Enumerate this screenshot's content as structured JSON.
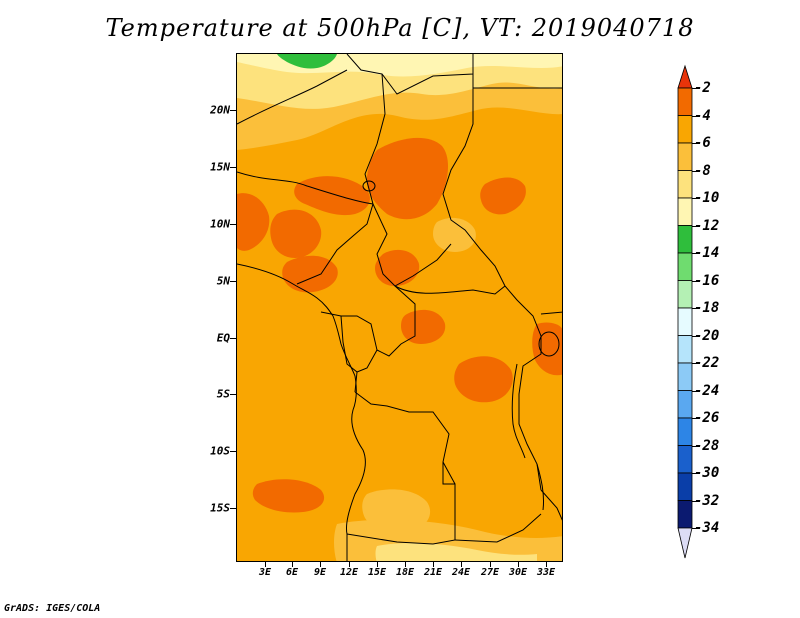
{
  "title": "Temperature at 500hPa [C], VT: 2019040718",
  "footer": "GrADS: IGES/COLA",
  "axes": {
    "lat_labels": [
      "20N",
      "15N",
      "10N",
      "5N",
      "EQ",
      "5S",
      "10S",
      "15S"
    ],
    "lon_labels": [
      "3E",
      "6E",
      "9E",
      "12E",
      "15E",
      "18E",
      "21E",
      "24E",
      "27E",
      "30E",
      "33E"
    ]
  },
  "colorbar": {
    "labels": [
      "-2",
      "-4",
      "-6",
      "-8",
      "-10",
      "-12",
      "-14",
      "-16",
      "-18",
      "-20",
      "-22",
      "-24",
      "-26",
      "-28",
      "-30",
      "-32",
      "-34"
    ],
    "colors": [
      "#e8340a",
      "#f26a00",
      "#f9a602",
      "#fbbf3a",
      "#fde27d",
      "#fff6b3",
      "#2fbe3c",
      "#6fdc6f",
      "#b4f0b4",
      "#e6fbff",
      "#b5e4fb",
      "#8ccaf6",
      "#5aa8f0",
      "#2d85e6",
      "#1a60cc",
      "#0a3ea8",
      "#0b1a70",
      "#dcdcf5"
    ]
  },
  "colors": {
    "base": "#f9a602",
    "warm": "#f26a00",
    "light": "#fbbf3a",
    "pale": "#fde27d",
    "very_pale": "#fff6b3",
    "green": "#2fbe3c",
    "border": "#000000"
  }
}
